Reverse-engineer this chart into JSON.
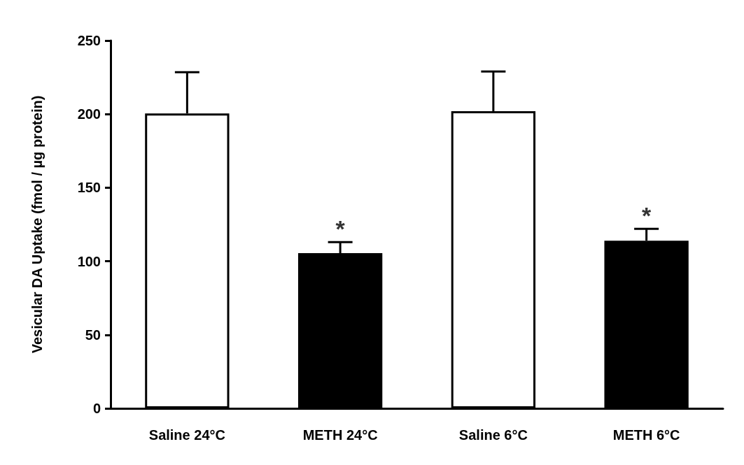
{
  "chart_data": {
    "type": "bar",
    "ylabel": "Vesicular DA Uptake (fmol / µg protein)",
    "categories": [
      "Saline 24°C",
      "METH 24°C",
      "Saline 6°C",
      "METH 6°C"
    ],
    "values": [
      200.5,
      105.5,
      202,
      114
    ],
    "colors": [
      "#ffffff",
      "#000000",
      "#ffffff",
      "#000000"
    ],
    "errors": [
      [
        200.5,
        228.5
      ],
      [
        105.5,
        113
      ],
      [
        202,
        229
      ],
      [
        114,
        122
      ]
    ],
    "annotations": [
      {
        "text": "*",
        "x": "METH 24°C",
        "y": 113
      },
      {
        "text": "*",
        "x": "METH 6°C",
        "y": 122
      }
    ],
    "ylim": [
      0,
      250
    ],
    "yticks": [
      0,
      50,
      100,
      150,
      200,
      250
    ],
    "grid": false
  }
}
